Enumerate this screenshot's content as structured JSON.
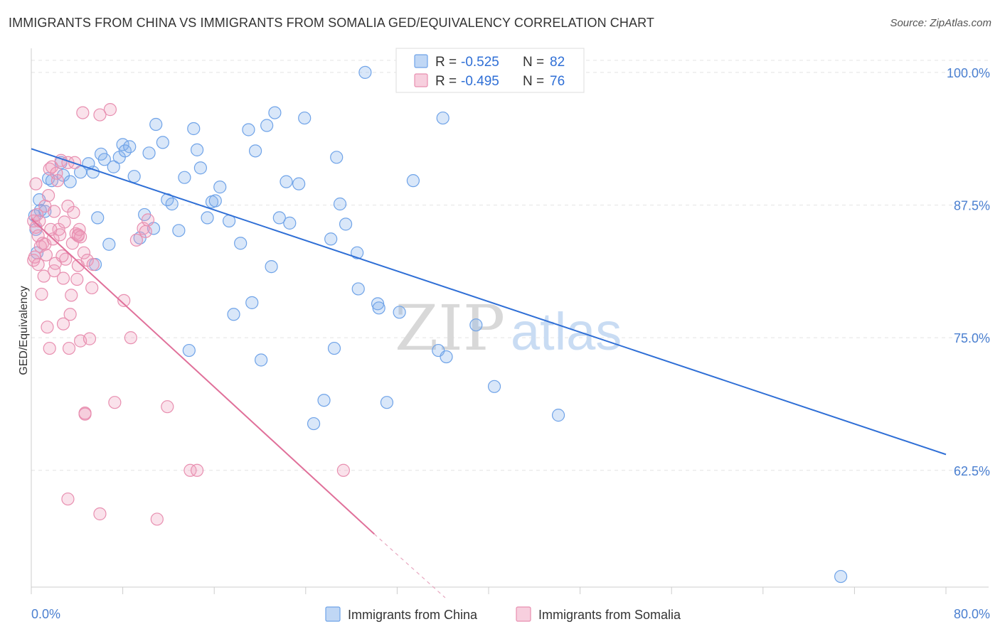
{
  "title": "IMMIGRANTS FROM CHINA VS IMMIGRANTS FROM SOMALIA GED/EQUIVALENCY CORRELATION CHART",
  "source": "Source: ZipAtlas.com",
  "watermark": {
    "zip": "ZIP",
    "atlas": "atlas"
  },
  "colors": {
    "china": "#6fa3e8",
    "china_fill": "rgba(130,175,235,0.30)",
    "china_line": "#2f6fd6",
    "somalia": "#e88fb0",
    "somalia_fill": "rgba(240,160,190,0.30)",
    "somalia_line": "#e0709a"
  },
  "legend": {
    "china": {
      "r_label": "R =",
      "r_value": "-0.525",
      "n_label": "N =",
      "n_value": "82"
    },
    "somalia": {
      "r_label": "R =",
      "r_value": "-0.495",
      "n_label": "N =",
      "n_value": "76"
    }
  },
  "chart_data": {
    "type": "scatter",
    "xlabel": "",
    "ylabel": "GED/Equivalency",
    "xlim": [
      0,
      80
    ],
    "ylim": [
      51.5,
      102
    ],
    "x_tick_labels": {
      "0": "0.0%",
      "80": "80.0%"
    },
    "y_ticks": [
      62.5,
      75.0,
      87.5,
      100.0
    ],
    "y_tick_labels": [
      "62.5%",
      "75.0%",
      "87.5%",
      "100.0%"
    ],
    "grid": true,
    "legend_placement": "top-center",
    "series": [
      {
        "name": "Immigrants from China",
        "trend": {
          "x": [
            0,
            80
          ],
          "y": [
            92.8,
            64.0
          ]
        },
        "points": [
          [
            0.4,
            85.2
          ],
          [
            0.5,
            83.0
          ],
          [
            0.7,
            88.0
          ],
          [
            0.8,
            87.0
          ],
          [
            1.2,
            86.9
          ],
          [
            1.5,
            90.0
          ],
          [
            1.8,
            89.8
          ],
          [
            2.6,
            91.5
          ],
          [
            2.8,
            90.3
          ],
          [
            3.4,
            89.7
          ],
          [
            4.3,
            90.6
          ],
          [
            5.0,
            91.4
          ],
          [
            5.4,
            90.6
          ],
          [
            5.6,
            81.9
          ],
          [
            5.8,
            86.3
          ],
          [
            6.1,
            92.3
          ],
          [
            6.4,
            91.8
          ],
          [
            6.8,
            83.8
          ],
          [
            7.2,
            91.1
          ],
          [
            7.7,
            92.0
          ],
          [
            8.0,
            93.2
          ],
          [
            8.2,
            92.6
          ],
          [
            8.6,
            93.0
          ],
          [
            9.0,
            90.2
          ],
          [
            9.5,
            84.4
          ],
          [
            9.9,
            86.6
          ],
          [
            10.3,
            92.4
          ],
          [
            10.7,
            85.3
          ],
          [
            10.9,
            95.1
          ],
          [
            11.5,
            93.4
          ],
          [
            11.9,
            88.0
          ],
          [
            12.3,
            87.6
          ],
          [
            12.9,
            85.1
          ],
          [
            13.4,
            90.1
          ],
          [
            13.8,
            73.8
          ],
          [
            14.2,
            94.7
          ],
          [
            14.5,
            92.7
          ],
          [
            14.8,
            91.0
          ],
          [
            15.4,
            86.3
          ],
          [
            15.8,
            87.8
          ],
          [
            16.1,
            87.9
          ],
          [
            16.5,
            89.2
          ],
          [
            17.3,
            86.0
          ],
          [
            17.7,
            77.2
          ],
          [
            18.3,
            83.9
          ],
          [
            19.0,
            94.6
          ],
          [
            19.3,
            78.3
          ],
          [
            19.6,
            92.6
          ],
          [
            20.1,
            72.9
          ],
          [
            20.6,
            95.0
          ],
          [
            21.0,
            81.7
          ],
          [
            21.3,
            96.2
          ],
          [
            21.7,
            86.3
          ],
          [
            22.3,
            89.7
          ],
          [
            22.6,
            85.8
          ],
          [
            23.4,
            89.5
          ],
          [
            23.9,
            95.7
          ],
          [
            24.7,
            66.9
          ],
          [
            25.6,
            69.1
          ],
          [
            26.2,
            84.3
          ],
          [
            26.5,
            74.0
          ],
          [
            26.7,
            92.0
          ],
          [
            27.0,
            87.6
          ],
          [
            27.5,
            85.7
          ],
          [
            28.5,
            83.0
          ],
          [
            28.6,
            79.6
          ],
          [
            29.2,
            100.0
          ],
          [
            30.3,
            78.2
          ],
          [
            30.4,
            77.8
          ],
          [
            31.1,
            68.9
          ],
          [
            32.2,
            77.4
          ],
          [
            32.8,
            100.0
          ],
          [
            33.0,
            99.9
          ],
          [
            33.4,
            89.8
          ],
          [
            35.6,
            73.8
          ],
          [
            36.0,
            95.7
          ],
          [
            36.3,
            73.2
          ],
          [
            38.9,
            76.2
          ],
          [
            40.5,
            70.4
          ],
          [
            46.1,
            67.7
          ],
          [
            70.8,
            52.5
          ],
          [
            0.3,
            86.5
          ]
        ]
      },
      {
        "name": "Immigrants from Somalia",
        "trend": {
          "x": [
            0,
            30.0
          ],
          "y": [
            86.2,
            56.5
          ]
        },
        "trend_dashed": {
          "x": [
            30.0,
            36.2
          ],
          "y": [
            56.5,
            50.5
          ]
        },
        "points": [
          [
            0.2,
            86.0
          ],
          [
            0.2,
            82.3
          ],
          [
            0.4,
            89.5
          ],
          [
            0.4,
            85.4
          ],
          [
            0.5,
            86.6
          ],
          [
            0.6,
            84.6
          ],
          [
            0.7,
            86.0
          ],
          [
            0.8,
            83.6
          ],
          [
            0.9,
            79.1
          ],
          [
            1.0,
            83.9
          ],
          [
            1.1,
            80.8
          ],
          [
            1.2,
            83.8
          ],
          [
            1.2,
            87.4
          ],
          [
            1.3,
            82.8
          ],
          [
            1.5,
            88.4
          ],
          [
            1.6,
            74.0
          ],
          [
            1.6,
            90.9
          ],
          [
            1.8,
            91.1
          ],
          [
            1.9,
            84.3
          ],
          [
            2.0,
            81.3
          ],
          [
            2.1,
            82.0
          ],
          [
            2.2,
            90.5
          ],
          [
            2.3,
            89.8
          ],
          [
            2.4,
            85.2
          ],
          [
            2.5,
            84.7
          ],
          [
            2.6,
            91.7
          ],
          [
            2.8,
            76.3
          ],
          [
            2.8,
            80.6
          ],
          [
            3.0,
            82.4
          ],
          [
            3.2,
            91.5
          ],
          [
            3.2,
            87.4
          ],
          [
            3.3,
            74.0
          ],
          [
            3.4,
            77.2
          ],
          [
            3.5,
            79.0
          ],
          [
            3.6,
            83.9
          ],
          [
            3.7,
            86.8
          ],
          [
            3.8,
            91.5
          ],
          [
            3.9,
            84.8
          ],
          [
            4.0,
            80.5
          ],
          [
            4.1,
            84.6
          ],
          [
            4.1,
            81.8
          ],
          [
            4.1,
            84.7
          ],
          [
            4.2,
            85.2
          ],
          [
            4.3,
            84.5
          ],
          [
            4.3,
            74.7
          ],
          [
            4.5,
            96.2
          ],
          [
            4.6,
            83.0
          ],
          [
            4.7,
            67.9
          ],
          [
            4.7,
            67.8
          ],
          [
            4.9,
            82.3
          ],
          [
            5.1,
            74.9
          ],
          [
            5.3,
            79.7
          ],
          [
            5.4,
            81.9
          ],
          [
            6.0,
            58.4
          ],
          [
            6.9,
            96.5
          ],
          [
            7.3,
            68.9
          ],
          [
            8.1,
            78.5
          ],
          [
            8.7,
            75.0
          ],
          [
            9.2,
            84.2
          ],
          [
            9.8,
            85.3
          ],
          [
            10.0,
            85.0
          ],
          [
            10.2,
            86.1
          ],
          [
            11.0,
            57.9
          ],
          [
            11.9,
            68.5
          ],
          [
            13.9,
            62.5
          ],
          [
            14.5,
            62.5
          ],
          [
            6.0,
            96.0
          ],
          [
            0.3,
            82.6
          ],
          [
            2.0,
            86.9
          ],
          [
            2.7,
            82.7
          ],
          [
            3.2,
            59.8
          ],
          [
            1.7,
            85.2
          ],
          [
            2.9,
            85.9
          ],
          [
            0.6,
            81.9
          ],
          [
            1.4,
            76.0
          ],
          [
            27.3,
            62.5
          ]
        ]
      }
    ]
  }
}
